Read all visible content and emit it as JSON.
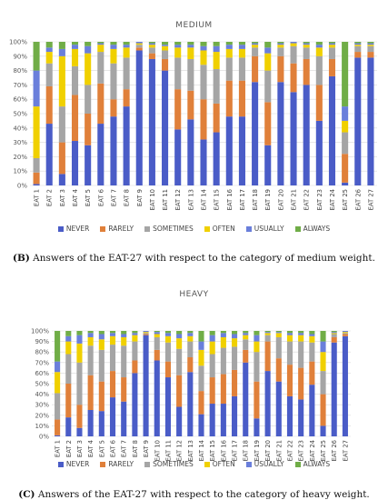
{
  "chart_data": [
    {
      "type": "bar",
      "stacked": true,
      "percent": true,
      "title": "MEDIUM",
      "caption_label": "(B)",
      "caption_text": " Answers of the EAT-27 with respect to the category of medium weight.",
      "ylim": [
        0,
        100
      ],
      "yticks": [
        "0%",
        "10%",
        "20%",
        "30%",
        "40%",
        "50%",
        "60%",
        "70%",
        "80%",
        "90%",
        "100%"
      ],
      "categories": [
        "EAT 1",
        "EAT 2",
        "EAT 3",
        "EAT 4",
        "EAT 5",
        "EAT 6",
        "EAT 7",
        "EAT 8",
        "EAT 9",
        "EAT 10",
        "EAT 11",
        "EAT 12",
        "EAT 13",
        "EAT 14",
        "EAT 15",
        "EAT 16",
        "EAT 17",
        "EAT 18",
        "EAT 19",
        "EAT 20",
        "EAT 21",
        "EAT 22",
        "EAT 23",
        "EAT 24",
        "EAT 25",
        "EAT 26",
        "EAT 27"
      ],
      "legend_position": "bottom",
      "series": [
        {
          "name": "NEVER",
          "color": "#4a5cc7",
          "values": [
            1,
            43,
            8,
            31,
            28,
            43,
            48,
            55,
            94,
            88,
            80,
            39,
            46,
            32,
            37,
            48,
            48,
            72,
            28,
            72,
            65,
            70,
            45,
            76,
            2,
            89,
            89
          ]
        },
        {
          "name": "RARELY",
          "color": "#e0803a",
          "values": [
            8,
            26,
            22,
            32,
            22,
            28,
            12,
            12,
            2,
            4,
            8,
            28,
            20,
            28,
            20,
            25,
            25,
            18,
            30,
            18,
            20,
            18,
            25,
            12,
            20,
            4,
            4
          ]
        },
        {
          "name": "SOMETIMES",
          "color": "#a5a5a5",
          "values": [
            10,
            16,
            25,
            20,
            20,
            22,
            25,
            22,
            2,
            4,
            6,
            22,
            22,
            24,
            24,
            16,
            16,
            6,
            22,
            6,
            12,
            8,
            20,
            8,
            15,
            4,
            4
          ]
        },
        {
          "name": "OFTEN",
          "color": "#f0d000",
          "values": [
            36,
            8,
            35,
            12,
            22,
            5,
            10,
            7,
            1,
            2,
            3,
            7,
            8,
            10,
            12,
            6,
            6,
            2,
            12,
            2,
            2,
            2,
            6,
            2,
            8,
            1,
            1
          ]
        },
        {
          "name": "USUALLY",
          "color": "#6a7fdb",
          "values": [
            25,
            3,
            5,
            3,
            5,
            1,
            3,
            2,
            1,
            1,
            1,
            2,
            2,
            3,
            4,
            3,
            3,
            1,
            4,
            1,
            1,
            1,
            2,
            1,
            10,
            1,
            1
          ]
        },
        {
          "name": "ALWAYS",
          "color": "#70ad47",
          "values": [
            20,
            4,
            5,
            2,
            3,
            1,
            2,
            2,
            0,
            1,
            2,
            2,
            2,
            3,
            3,
            2,
            2,
            1,
            4,
            1,
            0,
            1,
            2,
            1,
            45,
            1,
            1
          ]
        }
      ]
    },
    {
      "type": "bar",
      "stacked": true,
      "percent": true,
      "title": "HEAVY",
      "caption_label": "(C)",
      "caption_text": " Answers of the EAT-27 with respect to the category of heavy weight.",
      "ylim": [
        0,
        100
      ],
      "yticks": [
        "0%",
        "10%",
        "20%",
        "30%",
        "40%",
        "50%",
        "60%",
        "70%",
        "80%",
        "90%",
        "100%"
      ],
      "categories": [
        "EAT 1",
        "EAT 2",
        "EAT 3",
        "EAT 4",
        "EAT 5",
        "EAT 6",
        "EAT 7",
        "EAT 8",
        "EAT 9",
        "EAT 10",
        "EAT 11",
        "EAT 12",
        "EAT 13",
        "EAT 14",
        "EAT 15",
        "EAT 16",
        "EAT 17",
        "EAT 18",
        "EAT 19",
        "EAT 20",
        "EAT 21",
        "EAT 22",
        "EAT 23",
        "EAT 24",
        "EAT 25",
        "EAT 26",
        "EAT 27"
      ],
      "legend_position": "bottom",
      "series": [
        {
          "name": "NEVER",
          "color": "#4a5cc7",
          "values": [
            1,
            18,
            8,
            25,
            24,
            37,
            33,
            60,
            96,
            72,
            56,
            28,
            61,
            21,
            31,
            31,
            38,
            70,
            17,
            62,
            52,
            38,
            35,
            49,
            10,
            89,
            95
          ]
        },
        {
          "name": "RARELY",
          "color": "#e0803a",
          "values": [
            15,
            32,
            22,
            33,
            28,
            25,
            23,
            12,
            1,
            10,
            15,
            30,
            14,
            22,
            25,
            28,
            25,
            12,
            35,
            28,
            22,
            30,
            30,
            22,
            30,
            5,
            2
          ]
        },
        {
          "name": "SOMETIMES",
          "color": "#a5a5a5",
          "values": [
            25,
            28,
            40,
            28,
            30,
            25,
            30,
            18,
            1,
            12,
            18,
            25,
            15,
            24,
            22,
            25,
            22,
            10,
            28,
            6,
            20,
            22,
            25,
            18,
            22,
            3,
            1
          ]
        },
        {
          "name": "OFTEN",
          "color": "#f0d000",
          "values": [
            20,
            12,
            18,
            8,
            10,
            8,
            8,
            6,
            1,
            3,
            6,
            10,
            5,
            15,
            12,
            10,
            8,
            4,
            10,
            2,
            4,
            6,
            6,
            6,
            18,
            1,
            1
          ]
        },
        {
          "name": "USUALLY",
          "color": "#6a7fdb",
          "values": [
            10,
            5,
            8,
            4,
            5,
            3,
            3,
            2,
            1,
            2,
            3,
            4,
            3,
            8,
            6,
            4,
            4,
            2,
            6,
            1,
            1,
            2,
            2,
            2,
            10,
            1,
            1
          ]
        },
        {
          "name": "ALWAYS",
          "color": "#70ad47",
          "values": [
            29,
            5,
            4,
            2,
            3,
            2,
            3,
            2,
            0,
            1,
            2,
            3,
            2,
            10,
            4,
            2,
            3,
            2,
            4,
            1,
            1,
            2,
            2,
            3,
            10,
            1,
            0
          ]
        }
      ]
    }
  ]
}
